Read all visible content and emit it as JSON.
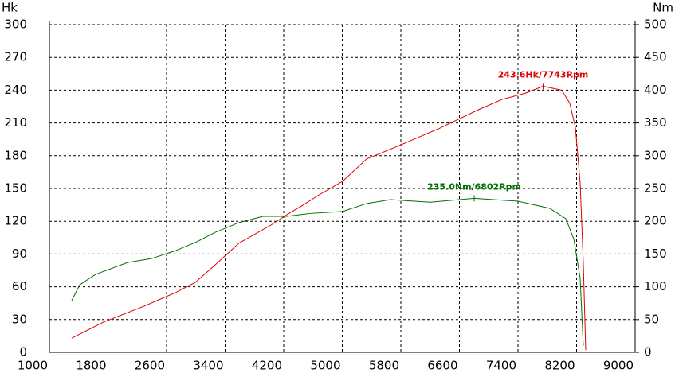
{
  "chart_data": {
    "type": "line",
    "y_label": "Hk",
    "y2_label": "Nm",
    "xlim": [
      1000,
      9000
    ],
    "xticks": [
      1000,
      1800,
      2600,
      3400,
      4200,
      5000,
      5800,
      6600,
      7400,
      8200,
      9000
    ],
    "ylim": [
      0,
      300
    ],
    "yticks": [
      0,
      30,
      60,
      90,
      120,
      150,
      180,
      210,
      240,
      270,
      300
    ],
    "y2lim": [
      0,
      500
    ],
    "y2ticks": [
      0,
      50,
      100,
      150,
      200,
      250,
      300,
      350,
      400,
      450,
      500
    ],
    "grid": true,
    "series": [
      {
        "color": "#e00000",
        "x": [
          1305,
          1740,
          2284,
          2720,
          2992,
          3264,
          3590,
          4026,
          4243,
          4461,
          4679,
          5005,
          5332,
          5767,
          6311,
          6856,
          7182,
          7509,
          7743,
          7998,
          8107,
          8184,
          8249,
          8292,
          8325
        ],
        "values": [
          13,
          27.7,
          42,
          54.6,
          64,
          80,
          100,
          116.5,
          126,
          134.7,
          144,
          156.6,
          177,
          189,
          204.6,
          222,
          231.5,
          237.4,
          243.6,
          240,
          228,
          206,
          155,
          82,
          2
        ]
      },
      {
        "color": "#007000",
        "axis": "y2",
        "x": [
          1305,
          1414,
          1632,
          2067,
          2394,
          2720,
          2992,
          3264,
          3590,
          3917,
          4243,
          4570,
          5005,
          5332,
          5659,
          6203,
          6802,
          7399,
          7835,
          8053,
          8162,
          8249,
          8292
        ],
        "values": [
          79,
          103,
          119,
          137,
          143,
          155,
          167.5,
          183,
          198,
          207.5,
          207.5,
          212,
          215,
          227,
          233,
          229,
          235,
          230.6,
          219.7,
          204,
          173,
          113,
          10
        ]
      }
    ],
    "annotations": [
      "243.6Hk/7743Rpm",
      "235.0Nm/6802Rpm"
    ]
  }
}
